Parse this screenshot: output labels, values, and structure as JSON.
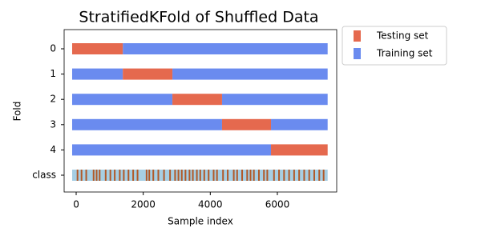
{
  "chart_data": {
    "type": "cv-splits",
    "title": "StratifiedKFold of Shuffled Data",
    "xlabel": "Sample index",
    "ylabel": "Fold",
    "xlim": [
      -359,
      7770
    ],
    "xticks": [
      0,
      2000,
      4000,
      6000
    ],
    "series": [
      {
        "name": "Testing set",
        "color": "#e5694e"
      },
      {
        "name": "Training set",
        "color": "#6a8bef"
      }
    ],
    "rows": [
      {
        "label": "0",
        "test": [
          [
            -120,
            1390
          ]
        ],
        "train": [
          [
            1390,
            7500
          ]
        ]
      },
      {
        "label": "1",
        "test": [
          [
            1390,
            2870
          ]
        ],
        "train": [
          [
            -120,
            1390
          ],
          [
            2870,
            7500
          ]
        ]
      },
      {
        "label": "2",
        "test": [
          [
            2870,
            4350
          ]
        ],
        "train": [
          [
            -120,
            2870
          ],
          [
            4350,
            7500
          ]
        ]
      },
      {
        "label": "3",
        "test": [
          [
            4350,
            5810
          ]
        ],
        "train": [
          [
            -120,
            4350
          ],
          [
            5810,
            7500
          ]
        ]
      },
      {
        "label": "4",
        "test": [
          [
            5810,
            7500
          ]
        ],
        "train": [
          [
            -120,
            5810
          ]
        ]
      }
    ],
    "class_label": "class",
    "class_range": [
      -120,
      7500
    ],
    "class_colors": [
      "#a6cee3",
      "#b15928"
    ],
    "class_stripes": [
      40,
      160,
      300,
      520,
      610,
      700,
      880,
      1020,
      1150,
      1300,
      1420,
      1560,
      1700,
      1830,
      2100,
      2180,
      2300,
      2450,
      2620,
      2800,
      2950,
      3050,
      3150,
      3260,
      3380,
      3480,
      3600,
      3700,
      3820,
      3950,
      4100,
      4200,
      4380,
      4520,
      4700,
      4800,
      4950,
      5100,
      5200,
      5300,
      5450,
      5600,
      5700,
      5900,
      6050,
      6200,
      6350,
      6500,
      6650,
      6800,
      6950,
      7100,
      7250,
      7380
    ],
    "legend": "outside-upper-right"
  }
}
